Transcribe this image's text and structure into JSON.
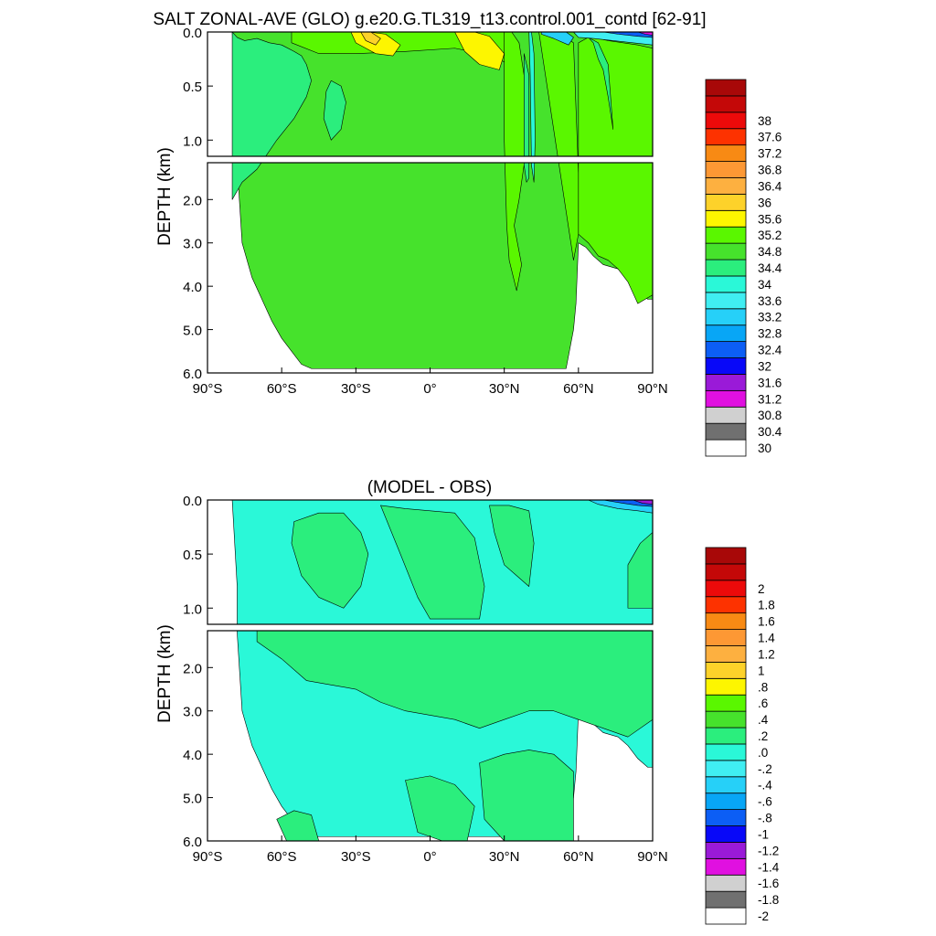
{
  "page": {
    "width": 1024,
    "height": 1024
  },
  "colors": {
    "salinity_levels": [
      "#ffffff",
      "#707070",
      "#d0d0d0",
      "#e010e0",
      "#9a1ad8",
      "#0808f8",
      "#0c5ef5",
      "#08a6f6",
      "#26d0f8",
      "#40eef2",
      "#2af8d8",
      "#2bee7d",
      "#46e22c",
      "#5af700",
      "#fdf600",
      "#fdd22a",
      "#fdb040",
      "#fd9834",
      "#f88a14",
      "#fd3200",
      "#ec0a0a",
      "#c40808",
      "#a80808"
    ],
    "diff_levels": [
      "#ffffff",
      "#707070",
      "#d0d0d0",
      "#e010e0",
      "#9a1ad8",
      "#0808f8",
      "#0c5ef5",
      "#08a6f6",
      "#26d0f8",
      "#40eef2",
      "#2af8d8",
      "#2bee7d",
      "#46e22c",
      "#5af700",
      "#fdf600",
      "#fdd22a",
      "#fdb040",
      "#fd9834",
      "#f88a14",
      "#fd3200",
      "#ec0a0a",
      "#c40808",
      "#a80808"
    ]
  },
  "chart_data": [
    {
      "type": "heatmap",
      "panel": "salinity",
      "title": "SALT ZONAL-AVE (GLO) g.e20.G.TL319_t13.control.001_contd [62-91]",
      "xlabel": "",
      "ylabel": "DEPTH (km)",
      "xlim": [
        -90,
        90
      ],
      "ylim_upper": [
        0,
        1.15
      ],
      "ylim_lower": [
        1.15,
        6.0
      ],
      "xticks": [
        "90°S",
        "60°S",
        "30°S",
        "0°",
        "30°N",
        "60°N",
        "90°N"
      ],
      "yticks_upper": [
        "0.0",
        "0.5",
        "1.0"
      ],
      "yticks_lower": [
        "2.0",
        "3.0",
        "4.0",
        "5.0",
        "6.0"
      ],
      "colorbar_labels": [
        "30",
        "30.4",
        "30.8",
        "31.2",
        "31.6",
        "32",
        "32.4",
        "32.8",
        "33.2",
        "33.6",
        "34",
        "34.4",
        "34.8",
        "35.2",
        "35.6",
        "36",
        "36.4",
        "36.8",
        "37.2",
        "37.6",
        "38"
      ],
      "background_value": 34.6,
      "regions": [
        {
          "value": 34.2,
          "x": [
            -80,
            -78,
            -75,
            -70,
            -65,
            -60,
            -55,
            -52,
            -50,
            -48,
            -50,
            -55,
            -62,
            -70,
            -76,
            -80
          ],
          "y": [
            0.0,
            0.05,
            0.08,
            0.06,
            0.1,
            0.12,
            0.18,
            0.22,
            0.3,
            0.45,
            0.6,
            0.8,
            1.0,
            1.3,
            1.6,
            2.0
          ]
        },
        {
          "value": 34.2,
          "x": [
            -40,
            -36,
            -34,
            -36,
            -40,
            -43,
            -42
          ],
          "y": [
            0.45,
            0.5,
            0.65,
            0.9,
            1.0,
            0.8,
            0.55
          ]
        },
        {
          "value": 35.0,
          "x": [
            -56,
            -40,
            -20,
            0,
            20,
            30,
            33,
            35,
            32,
            25,
            10,
            -10,
            -30,
            -45,
            -56
          ],
          "y": [
            0.0,
            0.0,
            0.0,
            0.0,
            0.0,
            0.0,
            0.2,
            0.6,
            0.3,
            0.22,
            0.15,
            0.18,
            0.2,
            0.2,
            0.1
          ]
        },
        {
          "value": 35.4,
          "x": [
            -32,
            -25,
            -18,
            -12,
            -15,
            -22,
            -30
          ],
          "y": [
            0.0,
            0.0,
            0.02,
            0.12,
            0.22,
            0.2,
            0.1
          ]
        },
        {
          "value": 35.8,
          "x": [
            -28,
            -24,
            -20,
            -22,
            -26
          ],
          "y": [
            0.0,
            0.0,
            0.06,
            0.12,
            0.08
          ]
        },
        {
          "value": 35.4,
          "x": [
            10,
            18,
            24,
            30,
            28,
            20,
            14
          ],
          "y": [
            0.0,
            0.0,
            0.04,
            0.2,
            0.35,
            0.3,
            0.18
          ]
        },
        {
          "value": 35.0,
          "x": [
            30,
            33,
            36,
            38,
            38,
            36,
            34,
            36,
            37,
            35,
            32,
            31,
            30
          ],
          "y": [
            0.0,
            0.0,
            0.1,
            0.4,
            1.2,
            2.0,
            2.6,
            3.2,
            3.5,
            4.1,
            3.4,
            2.6,
            1.0
          ]
        },
        {
          "value": 33.8,
          "x": [
            40,
            41,
            42,
            42.5,
            42,
            41,
            40.5
          ],
          "y": [
            0.0,
            0.0,
            0.2,
            1.0,
            1.6,
            1.2,
            0.4
          ]
        },
        {
          "value": 34.4,
          "x": [
            38,
            40,
            40,
            39,
            38
          ],
          "y": [
            0.2,
            0.4,
            1.5,
            1.6,
            1.2
          ]
        },
        {
          "value": 35.0,
          "x": [
            44,
            48,
            52,
            58,
            60,
            60,
            58
          ],
          "y": [
            0.0,
            0.0,
            0.0,
            0.1,
            1.4,
            2.8,
            3.4
          ]
        },
        {
          "value": 33.0,
          "x": [
            45,
            50,
            55,
            58,
            56,
            50,
            45
          ],
          "y": [
            0.0,
            0.0,
            0.0,
            0.05,
            0.12,
            0.06,
            0.02
          ]
        },
        {
          "value": 35.0,
          "x": [
            60,
            64,
            68,
            72,
            78,
            84,
            90,
            90,
            87,
            84,
            80,
            76,
            72,
            68,
            64,
            60
          ],
          "y": [
            0.1,
            0.05,
            0.06,
            0.08,
            0.1,
            0.12,
            0.15,
            4.2,
            4.3,
            4.4,
            3.9,
            3.6,
            3.4,
            3.3,
            3.0,
            2.8
          ]
        },
        {
          "value": 34.4,
          "x": [
            64,
            68,
            72,
            74,
            72,
            70,
            68,
            66
          ],
          "y": [
            0.05,
            0.1,
            0.3,
            0.9,
            0.6,
            0.35,
            0.25,
            0.1
          ]
        },
        {
          "value": 33.4,
          "x": [
            58,
            66,
            74,
            82,
            90,
            90,
            82,
            74,
            66,
            60
          ],
          "y": [
            0.0,
            0.0,
            0.0,
            0.0,
            0.0,
            0.12,
            0.1,
            0.08,
            0.06,
            0.05
          ]
        },
        {
          "value": 32.2,
          "x": [
            70,
            78,
            86,
            90,
            90,
            84,
            76
          ],
          "y": [
            0.0,
            0.0,
            0.0,
            0.0,
            0.05,
            0.04,
            0.02
          ]
        },
        {
          "value": 31.0,
          "x": [
            84,
            88,
            90,
            90,
            87
          ],
          "y": [
            0.0,
            0.0,
            0.0,
            0.03,
            0.02
          ]
        }
      ]
    },
    {
      "type": "heatmap",
      "panel": "difference",
      "title": "(MODEL - OBS)",
      "xlabel": "",
      "ylabel": "DEPTH (km)",
      "xlim": [
        -90,
        90
      ],
      "ylim_upper": [
        0,
        1.15
      ],
      "ylim_lower": [
        1.15,
        6.0
      ],
      "xticks": [
        "90°S",
        "60°S",
        "30°S",
        "0°",
        "30°N",
        "60°N",
        "90°N"
      ],
      "yticks_upper": [
        "0.0",
        "0.5",
        "1.0"
      ],
      "yticks_lower": [
        "2.0",
        "3.0",
        "4.0",
        "5.0",
        "6.0"
      ],
      "colorbar_labels": [
        "-2",
        "-1.8",
        "-1.6",
        "-1.4",
        "-1.2",
        "-1",
        "-.8",
        "-.6",
        "-.4",
        "-.2",
        ".0",
        ".2",
        ".4",
        ".6",
        ".8",
        "1",
        "1.2",
        "1.4",
        "1.6",
        "1.8",
        "2"
      ],
      "background_value": -0.1,
      "regions": [
        {
          "value": 0.1,
          "x": [
            -55,
            -45,
            -35,
            -28,
            -25,
            -28,
            -35,
            -45,
            -52,
            -56
          ],
          "y": [
            0.2,
            0.12,
            0.12,
            0.3,
            0.5,
            0.8,
            1.0,
            0.9,
            0.7,
            0.4
          ]
        },
        {
          "value": 0.1,
          "x": [
            -20,
            -10,
            0,
            10,
            18,
            22,
            20,
            12,
            5,
            0,
            -5,
            -12
          ],
          "y": [
            0.05,
            0.08,
            0.1,
            0.12,
            0.35,
            0.8,
            1.1,
            1.1,
            1.1,
            1.1,
            0.9,
            0.5
          ]
        },
        {
          "value": 0.1,
          "x": [
            24,
            32,
            40,
            42,
            40,
            35,
            30,
            26
          ],
          "y": [
            0.05,
            0.05,
            0.1,
            0.4,
            0.8,
            0.7,
            0.6,
            0.3
          ]
        },
        {
          "value": 0.1,
          "x": [
            -70,
            -60,
            -50,
            -40,
            -30,
            -20,
            -10,
            0,
            10,
            20,
            30,
            40,
            50,
            60,
            70,
            80,
            90,
            90,
            80,
            70,
            60,
            50,
            40,
            30,
            20,
            10,
            0,
            -10,
            -20,
            -30,
            -40,
            -50,
            -60,
            -70
          ],
          "y": [
            1.15,
            1.15,
            1.15,
            1.15,
            1.15,
            1.15,
            1.15,
            1.15,
            1.15,
            1.15,
            1.15,
            1.15,
            1.15,
            1.15,
            1.15,
            1.15,
            1.15,
            3.2,
            3.6,
            3.4,
            3.2,
            3.0,
            3.0,
            3.2,
            3.4,
            3.2,
            3.1,
            3.0,
            2.8,
            2.5,
            2.4,
            2.3,
            1.8,
            1.4
          ]
        },
        {
          "value": 0.1,
          "x": [
            20,
            30,
            40,
            50,
            58,
            58,
            50,
            40,
            30,
            22
          ],
          "y": [
            4.2,
            4.0,
            3.9,
            4.0,
            4.4,
            6.0,
            6.0,
            6.0,
            6.0,
            5.5
          ]
        },
        {
          "value": 0.1,
          "x": [
            -10,
            0,
            10,
            18,
            15,
            5,
            -5
          ],
          "y": [
            4.6,
            4.5,
            4.7,
            5.2,
            6.0,
            6.0,
            5.8
          ]
        },
        {
          "value": 0.1,
          "x": [
            -62,
            -55,
            -48,
            -45,
            -50,
            -58
          ],
          "y": [
            5.5,
            5.3,
            5.4,
            6.0,
            6.0,
            6.0
          ]
        },
        {
          "value": 0.1,
          "x": [
            80,
            85,
            90,
            90,
            85,
            80
          ],
          "y": [
            0.6,
            0.4,
            0.3,
            1.0,
            1.0,
            1.0
          ]
        },
        {
          "value": -0.5,
          "x": [
            64,
            70,
            78,
            86,
            90,
            90,
            84,
            76,
            68
          ],
          "y": [
            0.0,
            0.0,
            0.0,
            0.0,
            0.0,
            0.12,
            0.1,
            0.08,
            0.04
          ]
        },
        {
          "value": -0.9,
          "x": [
            70,
            78,
            86,
            90,
            90,
            84,
            78
          ],
          "y": [
            0.0,
            0.0,
            0.0,
            0.0,
            0.06,
            0.05,
            0.03
          ]
        },
        {
          "value": -1.3,
          "x": [
            82,
            87,
            90,
            90,
            86
          ],
          "y": [
            0.0,
            0.0,
            0.0,
            0.04,
            0.03
          ]
        }
      ]
    }
  ]
}
